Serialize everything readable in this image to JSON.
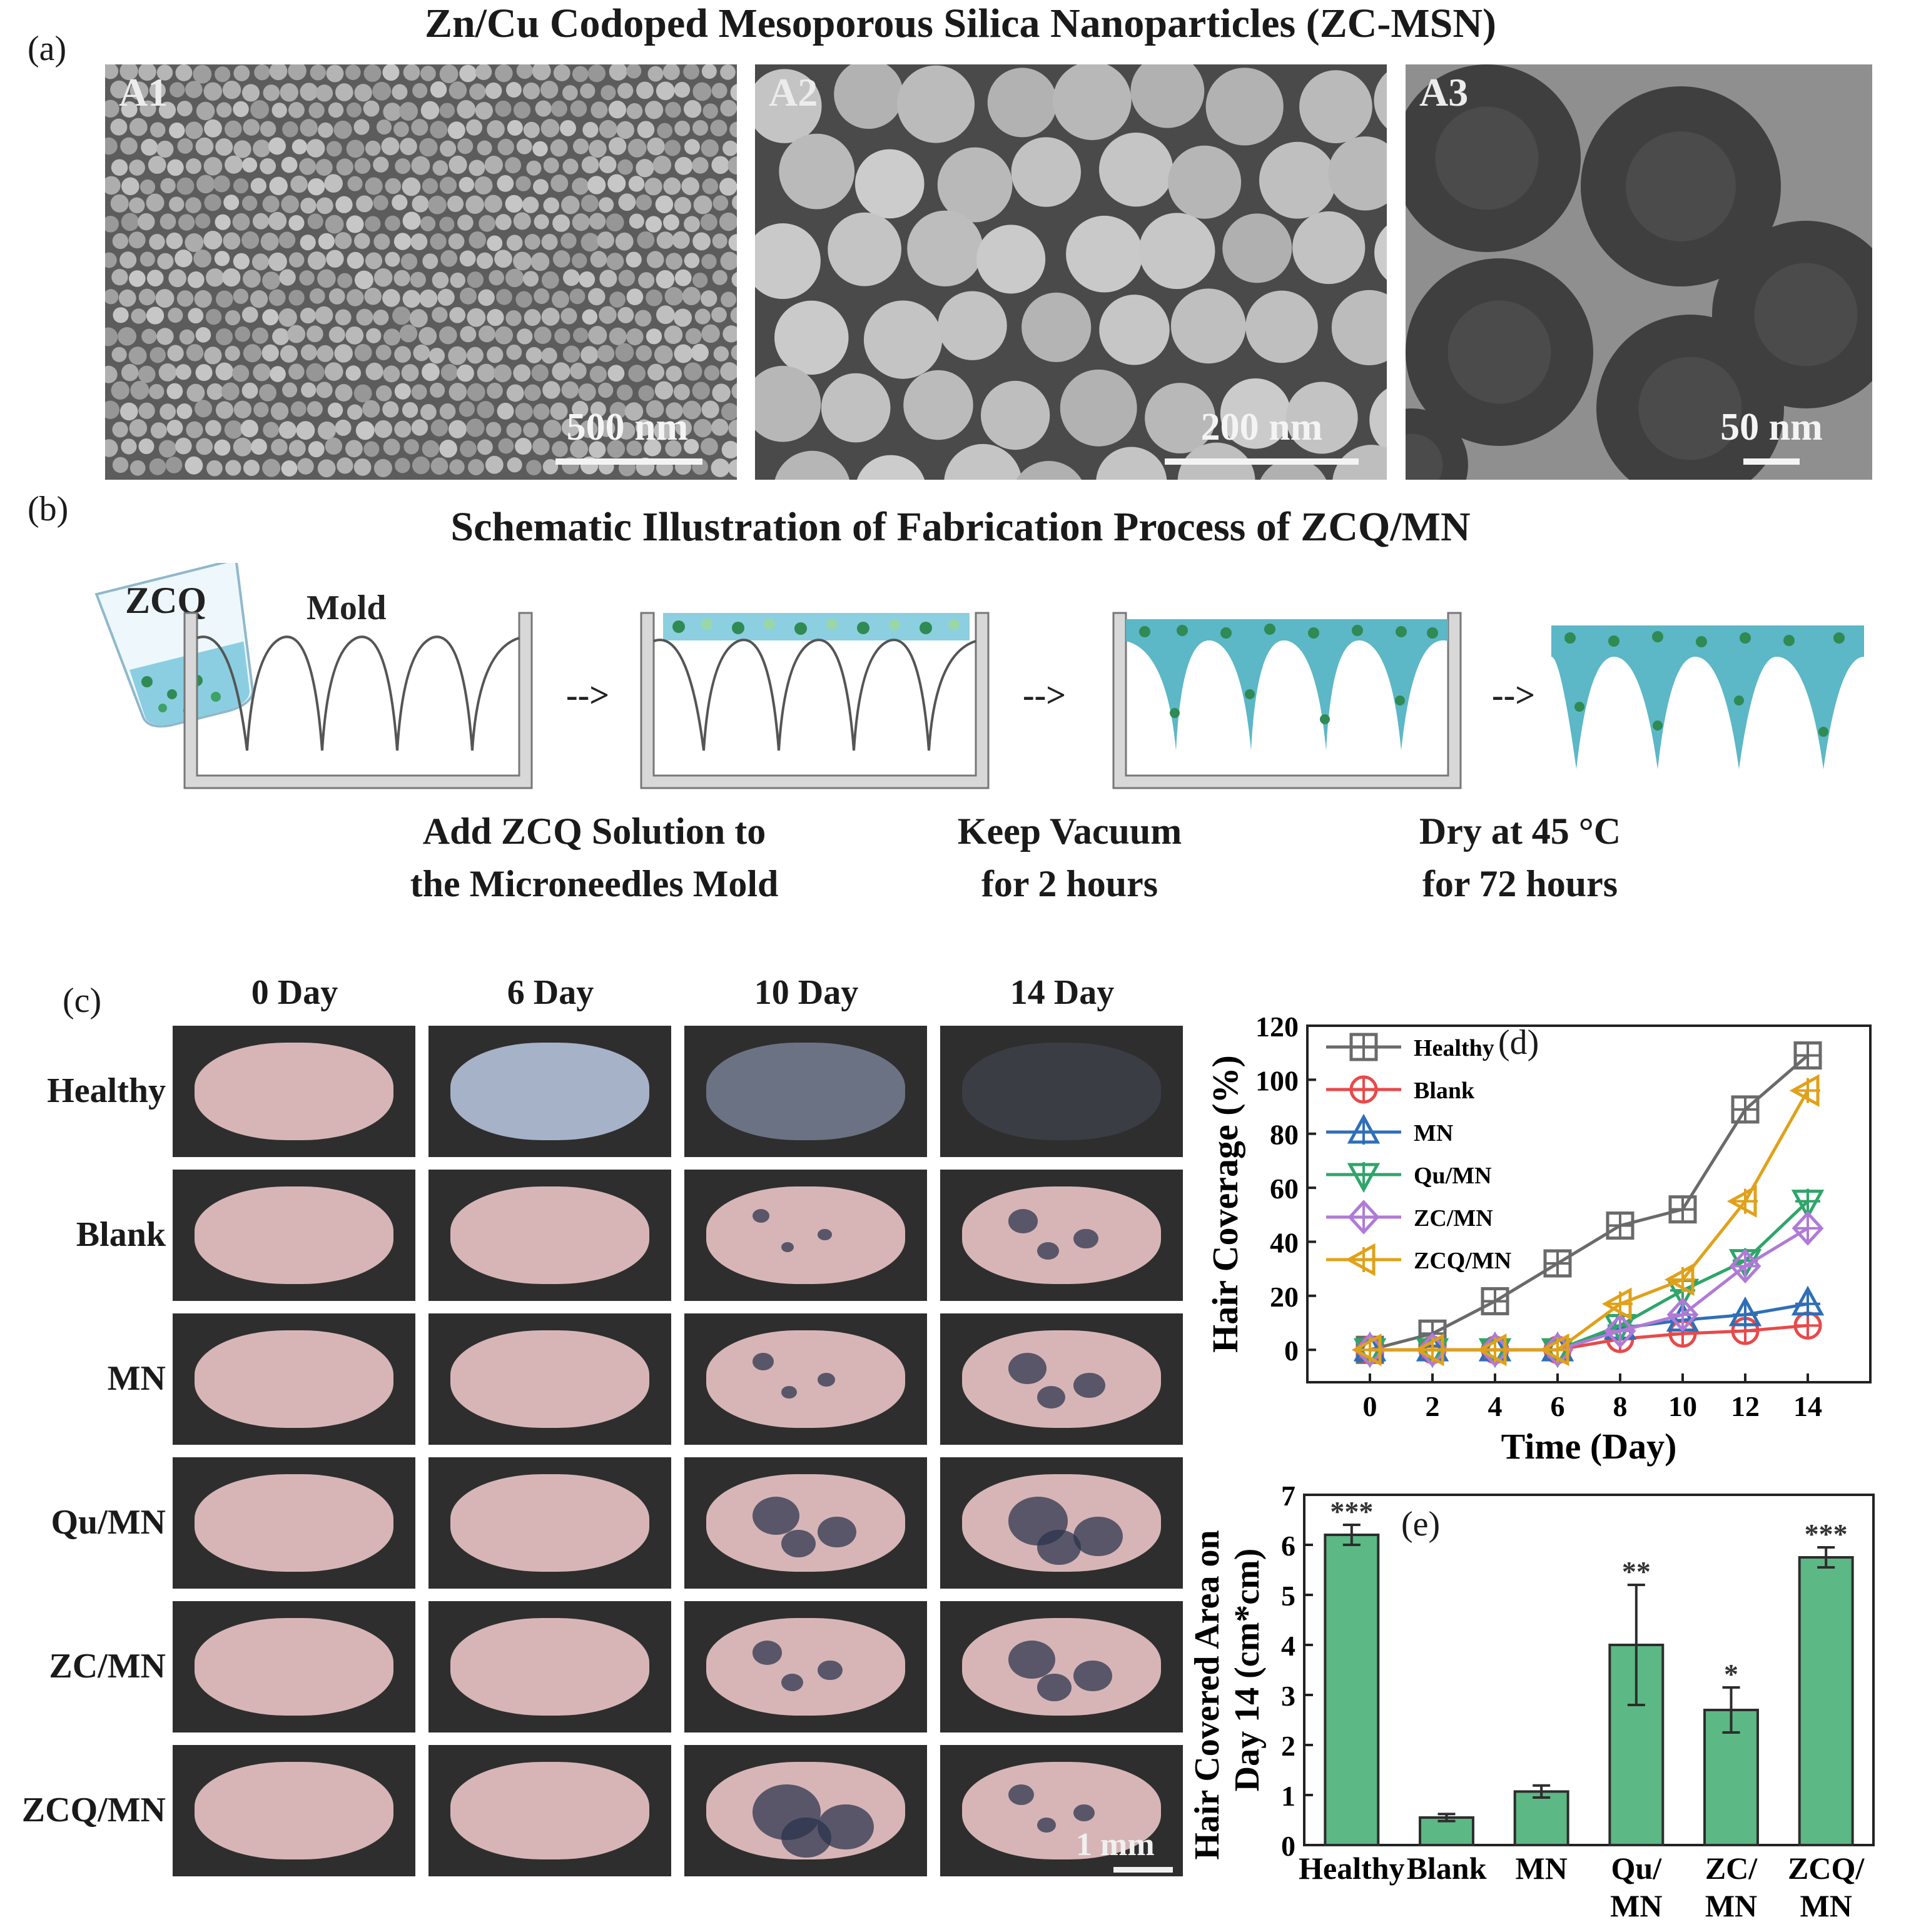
{
  "panels": {
    "a": {
      "letter": "(a)",
      "title": "Zn/Cu Codoped Mesoporous Silica Nanoparticles (ZC-MSN)",
      "images": [
        {
          "label": "A1",
          "scale": "500 nm"
        },
        {
          "label": "A2",
          "scale": "200 nm"
        },
        {
          "label": "A3",
          "scale": "50 nm"
        }
      ]
    },
    "b": {
      "letter": "(b)",
      "title": "Schematic Illustration of Fabrication Process of ZCQ/MN",
      "beaker_label": "ZCQ",
      "mold_label": "Mold",
      "arrow": "-->",
      "steps": [
        {
          "line1": "Add ZCQ Solution to",
          "line2": "the Microneedles Mold"
        },
        {
          "line1": "Keep Vacuum",
          "line2": "for 2 hours"
        },
        {
          "line1": "Dry at 45 °C",
          "line2": "for 72 hours"
        }
      ]
    },
    "c": {
      "letter": "(c)",
      "columns": [
        "0 Day",
        "6 Day",
        "10 Day",
        "14 Day"
      ],
      "rows": [
        "Healthy",
        "Blank",
        "MN",
        "Qu/MN",
        "ZC/MN",
        "ZCQ/MN"
      ],
      "scale": "1 mm"
    },
    "d": {
      "letter": "(d)"
    },
    "e": {
      "letter": "(e)"
    }
  },
  "chart_data": [
    {
      "type": "line",
      "panel": "d",
      "xlabel": "Time (Day)",
      "ylabel": "Hair Coverage (%)",
      "x": [
        0,
        2,
        4,
        6,
        8,
        10,
        12,
        14
      ],
      "xlim": [
        -2,
        16
      ],
      "ylim": [
        -12,
        120
      ],
      "yticks": [
        0,
        20,
        40,
        60,
        80,
        100,
        120
      ],
      "xticks": [
        0,
        2,
        4,
        6,
        8,
        10,
        12,
        14
      ],
      "legend_position": "top-left",
      "series": [
        {
          "name": "Healthy",
          "color": "#6a6a6a",
          "marker": "square-plus",
          "values": [
            0,
            6,
            18,
            32,
            46,
            52,
            89,
            109
          ]
        },
        {
          "name": "Blank",
          "color": "#e8494a",
          "marker": "circle-plus",
          "values": [
            0,
            0,
            0,
            0,
            4,
            6,
            7,
            9
          ]
        },
        {
          "name": "MN",
          "color": "#2f6fb7",
          "marker": "triangle-up",
          "values": [
            0,
            0,
            0,
            0,
            8,
            11,
            13,
            17
          ]
        },
        {
          "name": "Qu/MN",
          "color": "#2fa56a",
          "marker": "triangle-down",
          "values": [
            0,
            0,
            0,
            0,
            9,
            22,
            33,
            55
          ]
        },
        {
          "name": "ZC/MN",
          "color": "#b07ad6",
          "marker": "diamond",
          "values": [
            0,
            0,
            0,
            0,
            7,
            13,
            31,
            45
          ]
        },
        {
          "name": "ZCQ/MN",
          "color": "#e0a11a",
          "marker": "triangle-left",
          "values": [
            0,
            0,
            0,
            0,
            17,
            26,
            55,
            96
          ]
        }
      ]
    },
    {
      "type": "bar",
      "panel": "e",
      "ylabel_line1": "Hair Covered Area on",
      "ylabel_line2": "Day 14 (cm*cm)",
      "categories": [
        "Healthy",
        "Blank",
        "MN",
        "Qu/\nMN",
        "ZC/\nMN",
        "ZCQ/\nMN"
      ],
      "values": [
        6.2,
        0.55,
        1.07,
        4.0,
        2.7,
        5.75
      ],
      "errors": [
        0.2,
        0.07,
        0.12,
        1.2,
        0.45,
        0.2
      ],
      "significance": [
        "***",
        "",
        "",
        "**",
        "*",
        "***"
      ],
      "ylim": [
        0,
        7
      ],
      "yticks": [
        0,
        1,
        2,
        3,
        4,
        5,
        6,
        7
      ],
      "bar_color": "#5cb884"
    }
  ]
}
